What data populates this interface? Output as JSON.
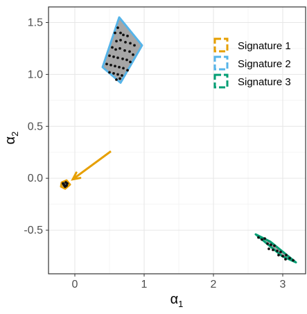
{
  "chart_data": {
    "type": "scatter",
    "xlabel": "α",
    "xlabel_sub": "1",
    "ylabel": "α",
    "ylabel_sub": "2",
    "xlim": [
      -0.38,
      3.33
    ],
    "ylim": [
      -0.92,
      1.65
    ],
    "x_ticks": [
      0,
      1,
      2,
      3
    ],
    "x_tick_labels": [
      "0",
      "1",
      "2",
      "3"
    ],
    "y_ticks": [
      -0.5,
      0.0,
      0.5,
      1.0,
      1.5
    ],
    "y_tick_labels": [
      "-0.5",
      "0.0",
      "0.5",
      "1.0",
      "1.5"
    ],
    "grid": true,
    "legend_position": "top-right",
    "series": [
      {
        "name": "Signature 1",
        "color": "#E69F00",
        "region": [
          [
            -0.19,
            -0.04
          ],
          [
            -0.12,
            -0.02
          ],
          [
            -0.07,
            -0.06
          ],
          [
            -0.14,
            -0.1
          ],
          [
            -0.2,
            -0.08
          ]
        ],
        "points": [
          [
            -0.17,
            -0.05
          ],
          [
            -0.15,
            -0.07
          ],
          [
            -0.13,
            -0.04
          ],
          [
            -0.14,
            -0.08
          ],
          [
            -0.11,
            -0.05
          ],
          [
            -0.16,
            -0.06
          ],
          [
            -0.12,
            -0.07
          ]
        ],
        "annotation": "arrow",
        "arrow": {
          "from": [
            0.52,
            0.26
          ],
          "to": [
            -0.03,
            -0.01
          ]
        }
      },
      {
        "name": "Signature 2",
        "color": "#56B4E9",
        "region": [
          [
            0.64,
            1.55
          ],
          [
            0.97,
            1.28
          ],
          [
            0.66,
            0.92
          ],
          [
            0.4,
            1.07
          ]
        ],
        "points": [
          [
            0.62,
            1.45
          ],
          [
            0.58,
            1.4
          ],
          [
            0.66,
            1.4
          ],
          [
            0.7,
            1.38
          ],
          [
            0.76,
            1.37
          ],
          [
            0.6,
            1.32
          ],
          [
            0.66,
            1.33
          ],
          [
            0.73,
            1.31
          ],
          [
            0.8,
            1.3
          ],
          [
            0.86,
            1.28
          ],
          [
            0.54,
            1.26
          ],
          [
            0.59,
            1.24
          ],
          [
            0.65,
            1.25
          ],
          [
            0.72,
            1.23
          ],
          [
            0.79,
            1.22
          ],
          [
            0.84,
            1.19
          ],
          [
            0.5,
            1.18
          ],
          [
            0.56,
            1.17
          ],
          [
            0.62,
            1.16
          ],
          [
            0.69,
            1.15
          ],
          [
            0.75,
            1.14
          ],
          [
            0.8,
            1.12
          ],
          [
            0.46,
            1.1
          ],
          [
            0.52,
            1.09
          ],
          [
            0.58,
            1.08
          ],
          [
            0.64,
            1.07
          ],
          [
            0.7,
            1.06
          ],
          [
            0.76,
            1.04
          ],
          [
            0.5,
            1.02
          ],
          [
            0.56,
            1.01
          ],
          [
            0.62,
            1.0
          ],
          [
            0.68,
            0.99
          ],
          [
            0.6,
            0.95
          ],
          [
            0.65,
            0.96
          ]
        ]
      },
      {
        "name": "Signature 3",
        "color": "#009E73",
        "region": [
          [
            2.61,
            -0.54
          ],
          [
            2.82,
            -0.61
          ],
          [
            3.19,
            -0.81
          ],
          [
            2.99,
            -0.75
          ]
        ],
        "points": [
          [
            2.65,
            -0.57
          ],
          [
            2.7,
            -0.59
          ],
          [
            2.74,
            -0.58
          ],
          [
            2.78,
            -0.63
          ],
          [
            2.83,
            -0.64
          ],
          [
            2.88,
            -0.65
          ],
          [
            2.8,
            -0.68
          ],
          [
            2.86,
            -0.69
          ],
          [
            2.92,
            -0.7
          ],
          [
            2.97,
            -0.71
          ],
          [
            2.94,
            -0.74
          ],
          [
            3.0,
            -0.75
          ],
          [
            3.05,
            -0.74
          ],
          [
            3.1,
            -0.77
          ],
          [
            3.15,
            -0.79
          ],
          [
            3.04,
            -0.78
          ]
        ]
      }
    ]
  }
}
